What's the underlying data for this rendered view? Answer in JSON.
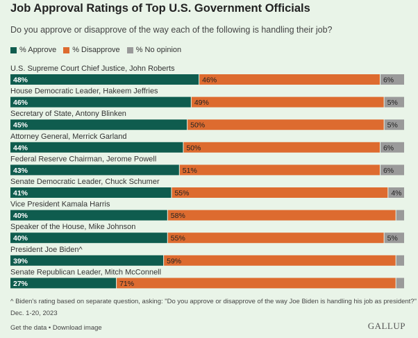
{
  "title": "Job Approval Ratings of Top U.S. Government Officials",
  "subtitle": "Do you approve or disapprove of the way each of the following is handling their job?",
  "legend": [
    {
      "label": "% Approve",
      "color": "#0f5c4e"
    },
    {
      "label": "% Disapprove",
      "color": "#dd6b2f"
    },
    {
      "label": "% No opinion",
      "color": "#9a9a9a"
    }
  ],
  "chart_data": {
    "type": "bar",
    "orientation": "horizontal-stacked",
    "categories": [
      "U.S. Supreme Court Chief Justice, John Roberts",
      "House Democratic Leader, Hakeem Jeffries",
      "Secretary of State, Antony Blinken",
      "Attorney General, Merrick Garland",
      "Federal Reserve Chairman, Jerome Powell",
      "Senate Democratic Leader, Chuck Schumer",
      "Vice President Kamala Harris",
      "Speaker of the House, Mike Johnson",
      "President Joe Biden^",
      "Senate Republican Leader, Mitch McConnell"
    ],
    "series": [
      {
        "name": "% Approve",
        "color": "#0f5c4e",
        "values": [
          48,
          46,
          45,
          44,
          43,
          41,
          40,
          40,
          39,
          27
        ],
        "labels": [
          "48%",
          "46%",
          "45%",
          "44%",
          "43%",
          "41%",
          "40%",
          "40%",
          "39%",
          "27%"
        ]
      },
      {
        "name": "% Disapprove",
        "color": "#dd6b2f",
        "values": [
          46,
          49,
          50,
          50,
          51,
          55,
          58,
          55,
          59,
          71
        ],
        "labels": [
          "46%",
          "49%",
          "50%",
          "50%",
          "51%",
          "55%",
          "58%",
          "55%",
          "59%",
          "71%"
        ]
      },
      {
        "name": "% No opinion",
        "color": "#9a9a9a",
        "values": [
          6,
          5,
          5,
          6,
          6,
          4,
          2,
          5,
          2,
          2
        ],
        "labels": [
          "6%",
          "5%",
          "5%",
          "6%",
          "6%",
          "4%",
          "",
          "5%",
          "",
          ""
        ]
      }
    ],
    "xlim": [
      0,
      100
    ]
  },
  "footnote": "^ Biden's rating based on separate question, asking: \"Do you approve or disapprove of the way Joe Biden is handling his job as president?\"",
  "date_range": "Dec. 1-20, 2023",
  "links": {
    "get_data": "Get the data",
    "separator": " • ",
    "download": "Download image"
  },
  "brand": "GALLUP"
}
